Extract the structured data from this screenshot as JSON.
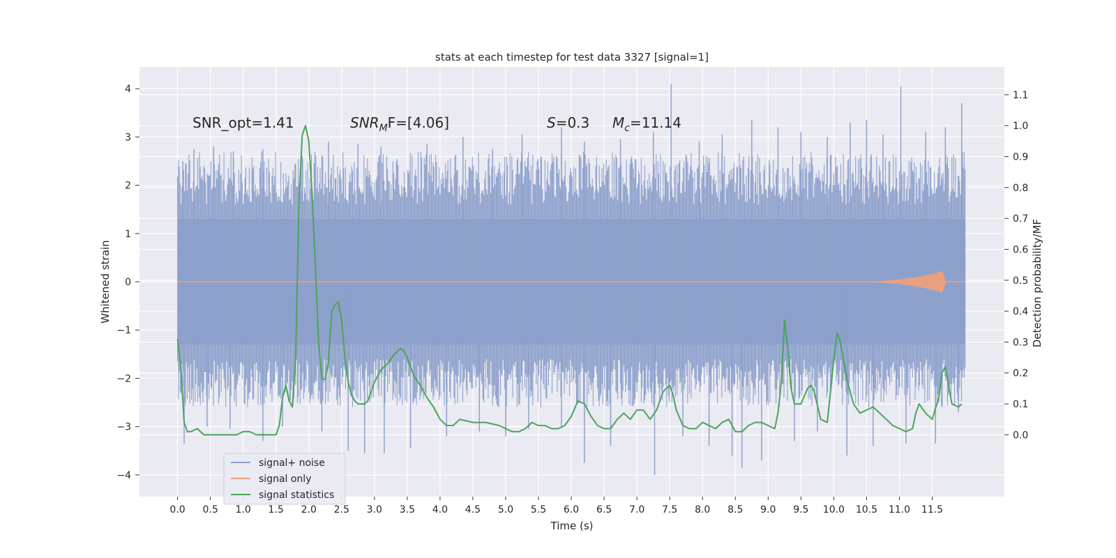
{
  "chart_data": {
    "type": "line",
    "title": "stats at each timestep for test data 3327 [signal=1]",
    "xlabel": "Time (s)",
    "ylabel": "Whitened strain",
    "y2label": "Detection probability/MF",
    "xlim": [
      -0.58,
      12.6
    ],
    "ylim": [
      -4.45,
      4.45
    ],
    "y2lim": [
      -0.2,
      1.19
    ],
    "xticks": [
      0.0,
      0.5,
      1.0,
      1.5,
      2.0,
      2.5,
      3.0,
      3.5,
      4.0,
      4.5,
      5.0,
      5.5,
      6.0,
      6.5,
      7.0,
      7.5,
      8.0,
      8.5,
      9.0,
      9.5,
      10.0,
      10.5,
      11.0,
      11.5
    ],
    "xtick_labels": [
      "0.0",
      "0.5",
      "1.0",
      "1.5",
      "2.0",
      "2.5",
      "3.0",
      "3.5",
      "4.0",
      "4.5",
      "5.0",
      "5.5",
      "6.0",
      "6.5",
      "7.0",
      "7.5",
      "8.0",
      "8.5",
      "9.0",
      "9.5",
      "10.0",
      "10.5",
      "11.0",
      "11.5"
    ],
    "yticks": [
      4,
      3,
      2,
      1,
      0,
      -1,
      -2,
      -3,
      -4
    ],
    "ytick_labels": [
      "4",
      "3",
      "2",
      "1",
      "0",
      "−1",
      "−2",
      "−3",
      "−4"
    ],
    "y2ticks": [
      1.1,
      1.0,
      0.9,
      0.8,
      0.7,
      0.6,
      0.5,
      0.4,
      0.3,
      0.2,
      0.1,
      0.0
    ],
    "y2tick_labels": [
      "1.1",
      "1.0",
      "0.9",
      "0.8",
      "0.7",
      "0.6",
      "0.5",
      "0.4",
      "0.3",
      "0.2",
      "0.1",
      "0.0"
    ],
    "annotations": {
      "snr_opt": "SNR_opt=1.41",
      "snr_mf_main": "SNR",
      "snr_mf_sub": "M",
      "snr_mf_rest": "F=[4.06]",
      "s_var": "S",
      "s_val": "=0.3",
      "mc_var": "M",
      "mc_sub": "c",
      "mc_val": "=11.14"
    },
    "legend": {
      "position": "lower-left",
      "entries": [
        "signal+ noise",
        "signal only",
        "signal statistics"
      ]
    },
    "colors": {
      "noise": "#8da0cb",
      "signal": "#e8a080",
      "stats": "#4aa35a",
      "axes_bg": "#eaeaf2",
      "grid": "#ffffff"
    },
    "series": [
      {
        "name": "signal+ noise",
        "axis": "left",
        "x_range": [
          0.0,
          12.0
        ],
        "band_upper_approx": 1.3,
        "band_lower_approx": -1.3,
        "peaks_upper": [
          [
            0.08,
            2.5
          ],
          [
            0.25,
            2.75
          ],
          [
            0.55,
            2.8
          ],
          [
            0.85,
            2.7
          ],
          [
            1.3,
            2.75
          ],
          [
            1.9,
            2.6
          ],
          [
            2.3,
            2.9
          ],
          [
            2.75,
            2.85
          ],
          [
            3.1,
            2.8
          ],
          [
            3.8,
            2.85
          ],
          [
            4.35,
            3.0
          ],
          [
            4.8,
            2.75
          ],
          [
            5.25,
            3.05
          ],
          [
            5.85,
            3.2
          ],
          [
            6.2,
            2.9
          ],
          [
            6.75,
            2.95
          ],
          [
            7.25,
            3.1
          ],
          [
            7.52,
            4.1
          ],
          [
            7.95,
            2.9
          ],
          [
            8.3,
            3.05
          ],
          [
            8.75,
            3.35
          ],
          [
            9.15,
            3.2
          ],
          [
            9.5,
            3.1
          ],
          [
            9.9,
            3.0
          ],
          [
            10.25,
            3.3
          ],
          [
            10.5,
            3.35
          ],
          [
            10.75,
            3.05
          ],
          [
            11.02,
            4.05
          ],
          [
            11.4,
            3.1
          ],
          [
            11.7,
            3.2
          ],
          [
            11.95,
            3.7
          ]
        ],
        "peaks_lower": [
          [
            0.1,
            -3.35
          ],
          [
            0.45,
            -3.0
          ],
          [
            0.8,
            -3.05
          ],
          [
            1.3,
            -3.3
          ],
          [
            1.6,
            -3.0
          ],
          [
            2.2,
            -3.1
          ],
          [
            2.6,
            -3.5
          ],
          [
            2.85,
            -3.55
          ],
          [
            3.15,
            -3.55
          ],
          [
            3.55,
            -3.45
          ],
          [
            4.1,
            -3.2
          ],
          [
            4.6,
            -3.1
          ],
          [
            5.0,
            -3.2
          ],
          [
            5.35,
            -3.05
          ],
          [
            5.85,
            -3.0
          ],
          [
            6.2,
            -3.75
          ],
          [
            6.6,
            -3.4
          ],
          [
            7.27,
            -4.0
          ],
          [
            7.7,
            -3.2
          ],
          [
            8.1,
            -3.4
          ],
          [
            8.45,
            -3.6
          ],
          [
            8.6,
            -3.85
          ],
          [
            8.9,
            -3.7
          ],
          [
            9.4,
            -3.3
          ],
          [
            9.75,
            -3.1
          ],
          [
            10.2,
            -3.6
          ],
          [
            10.6,
            -3.4
          ],
          [
            11.1,
            -3.35
          ],
          [
            11.55,
            -3.35
          ],
          [
            11.9,
            -2.7
          ]
        ]
      },
      {
        "name": "signal only",
        "axis": "left",
        "x_range": [
          0.0,
          12.0
        ],
        "baseline": 0.0,
        "chirp_start": 10.0,
        "chirp_peak_time": 11.65,
        "chirp_peak_amplitude": 0.22
      },
      {
        "name": "signal statistics",
        "axis": "right",
        "x": [
          0.0,
          0.05,
          0.1,
          0.15,
          0.2,
          0.3,
          0.4,
          0.5,
          0.6,
          0.7,
          0.8,
          0.9,
          1.0,
          1.1,
          1.2,
          1.3,
          1.4,
          1.5,
          1.55,
          1.6,
          1.65,
          1.7,
          1.75,
          1.8,
          1.85,
          1.9,
          1.95,
          2.0,
          2.05,
          2.1,
          2.15,
          2.2,
          2.25,
          2.3,
          2.35,
          2.4,
          2.45,
          2.5,
          2.55,
          2.6,
          2.65,
          2.7,
          2.75,
          2.8,
          2.85,
          2.9,
          3.0,
          3.1,
          3.2,
          3.3,
          3.4,
          3.45,
          3.5,
          3.55,
          3.6,
          3.7,
          3.8,
          3.9,
          4.0,
          4.1,
          4.2,
          4.3,
          4.5,
          4.7,
          4.9,
          5.0,
          5.1,
          5.2,
          5.3,
          5.4,
          5.5,
          5.6,
          5.7,
          5.8,
          5.9,
          6.0,
          6.1,
          6.2,
          6.3,
          6.4,
          6.5,
          6.6,
          6.7,
          6.8,
          6.9,
          7.0,
          7.1,
          7.2,
          7.3,
          7.4,
          7.5,
          7.55,
          7.6,
          7.7,
          7.8,
          7.9,
          8.0,
          8.1,
          8.2,
          8.3,
          8.4,
          8.5,
          8.6,
          8.7,
          8.8,
          8.9,
          9.0,
          9.1,
          9.15,
          9.2,
          9.25,
          9.3,
          9.35,
          9.4,
          9.5,
          9.6,
          9.65,
          9.7,
          9.8,
          9.9,
          10.0,
          10.05,
          10.1,
          10.2,
          10.3,
          10.4,
          10.5,
          10.6,
          10.7,
          10.8,
          10.9,
          11.0,
          11.1,
          11.2,
          11.25,
          11.3,
          11.4,
          11.5,
          11.6,
          11.65,
          11.7,
          11.8,
          11.9,
          11.95
        ],
        "values": [
          0.31,
          0.22,
          0.04,
          0.01,
          0.01,
          0.02,
          0.0,
          0.0,
          0.0,
          0.0,
          0.0,
          0.0,
          0.01,
          0.01,
          0.0,
          0.0,
          0.0,
          0.0,
          0.03,
          0.12,
          0.16,
          0.11,
          0.09,
          0.25,
          0.75,
          0.97,
          1.0,
          0.95,
          0.78,
          0.55,
          0.3,
          0.18,
          0.18,
          0.24,
          0.4,
          0.42,
          0.43,
          0.37,
          0.25,
          0.17,
          0.13,
          0.11,
          0.1,
          0.1,
          0.1,
          0.11,
          0.17,
          0.21,
          0.23,
          0.26,
          0.28,
          0.27,
          0.25,
          0.22,
          0.19,
          0.16,
          0.12,
          0.09,
          0.05,
          0.03,
          0.03,
          0.05,
          0.04,
          0.04,
          0.03,
          0.02,
          0.01,
          0.01,
          0.02,
          0.04,
          0.03,
          0.03,
          0.02,
          0.02,
          0.03,
          0.06,
          0.11,
          0.1,
          0.06,
          0.03,
          0.02,
          0.02,
          0.05,
          0.07,
          0.05,
          0.08,
          0.08,
          0.05,
          0.08,
          0.14,
          0.16,
          0.13,
          0.08,
          0.03,
          0.02,
          0.02,
          0.04,
          0.03,
          0.02,
          0.04,
          0.05,
          0.01,
          0.01,
          0.03,
          0.04,
          0.04,
          0.03,
          0.02,
          0.07,
          0.17,
          0.37,
          0.28,
          0.15,
          0.1,
          0.1,
          0.15,
          0.16,
          0.14,
          0.05,
          0.04,
          0.24,
          0.33,
          0.3,
          0.18,
          0.1,
          0.07,
          0.08,
          0.09,
          0.07,
          0.05,
          0.03,
          0.02,
          0.01,
          0.02,
          0.07,
          0.1,
          0.07,
          0.05,
          0.12,
          0.2,
          0.22,
          0.1,
          0.09,
          0.1
        ]
      }
    ]
  }
}
